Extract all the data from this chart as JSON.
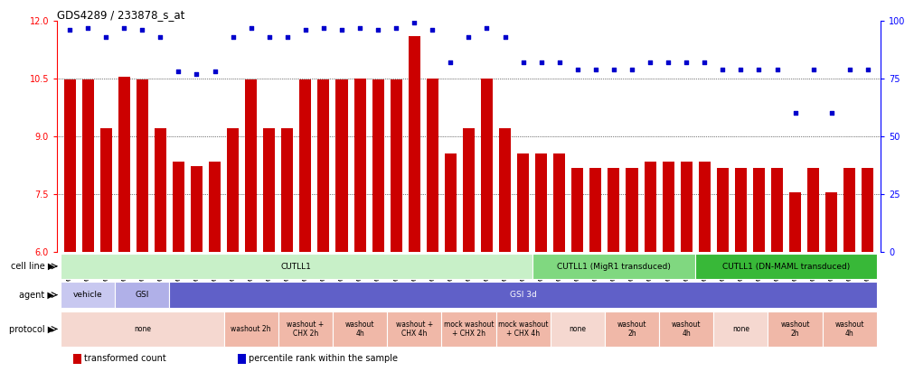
{
  "title": "GDS4289 / 233878_s_at",
  "gsm_labels": [
    "GSM731500",
    "GSM731501",
    "GSM731502",
    "GSM731503",
    "GSM731504",
    "GSM731505",
    "GSM731518",
    "GSM731519",
    "GSM731520",
    "GSM731506",
    "GSM731507",
    "GSM731508",
    "GSM731509",
    "GSM731510",
    "GSM731511",
    "GSM731512",
    "GSM731513",
    "GSM731514",
    "GSM731515",
    "GSM731516",
    "GSM731517",
    "GSM731521",
    "GSM731522",
    "GSM731523",
    "GSM731524",
    "GSM731525",
    "GSM731526",
    "GSM731527",
    "GSM731528",
    "GSM731529",
    "GSM731531",
    "GSM731532",
    "GSM731533",
    "GSM731534",
    "GSM731535",
    "GSM731536",
    "GSM731537",
    "GSM731538",
    "GSM731539",
    "GSM731540",
    "GSM731541",
    "GSM731542",
    "GSM731543",
    "GSM731544",
    "GSM731545"
  ],
  "bar_values": [
    10.47,
    10.48,
    9.22,
    10.55,
    10.48,
    9.22,
    8.35,
    8.22,
    8.35,
    9.22,
    10.47,
    9.22,
    9.22,
    10.47,
    10.47,
    10.47,
    10.5,
    10.48,
    10.48,
    11.6,
    10.5,
    8.55,
    9.22,
    10.5,
    9.22,
    8.55,
    8.55,
    8.55,
    8.18,
    8.18,
    8.18,
    8.18,
    8.35,
    8.35,
    8.35,
    8.35,
    8.18,
    8.18,
    8.18,
    8.18,
    7.55,
    8.18,
    7.55,
    8.18,
    8.18
  ],
  "dot_values": [
    96,
    97,
    93,
    97,
    96,
    93,
    78,
    77,
    78,
    93,
    97,
    93,
    93,
    96,
    97,
    96,
    97,
    96,
    97,
    99,
    96,
    82,
    93,
    97,
    93,
    82,
    82,
    82,
    79,
    79,
    79,
    79,
    82,
    82,
    82,
    82,
    79,
    79,
    79,
    79,
    60,
    79,
    60,
    79,
    79
  ],
  "bar_color": "#cc0000",
  "dot_color": "#0000cc",
  "ylim_left": [
    6,
    12
  ],
  "ylim_right": [
    0,
    100
  ],
  "yticks_left": [
    6,
    7.5,
    9,
    10.5,
    12
  ],
  "yticks_right": [
    0,
    25,
    50,
    75,
    100
  ],
  "bg_color": "#ffffff",
  "cell_line_row": {
    "label": "cell line",
    "segments": [
      {
        "text": "CUTLL1",
        "start": 0,
        "end": 26,
        "color": "#c8f0c8"
      },
      {
        "text": "CUTLL1 (MigR1 transduced)",
        "start": 26,
        "end": 35,
        "color": "#80d880"
      },
      {
        "text": "CUTLL1 (DN-MAML transduced)",
        "start": 35,
        "end": 45,
        "color": "#38b838"
      }
    ]
  },
  "agent_row": {
    "label": "agent",
    "segments": [
      {
        "text": "vehicle",
        "start": 0,
        "end": 3,
        "color": "#c8c8f0",
        "text_color": "#000000"
      },
      {
        "text": "GSI",
        "start": 3,
        "end": 6,
        "color": "#b0b0e8",
        "text_color": "#000000"
      },
      {
        "text": "GSI 3d",
        "start": 6,
        "end": 45,
        "color": "#6060c8",
        "text_color": "#ffffff"
      }
    ]
  },
  "protocol_row": {
    "label": "protocol",
    "segments": [
      {
        "text": "none",
        "start": 0,
        "end": 9,
        "color": "#f5d8d0"
      },
      {
        "text": "washout 2h",
        "start": 9,
        "end": 12,
        "color": "#f0b8a8"
      },
      {
        "text": "washout +\nCHX 2h",
        "start": 12,
        "end": 15,
        "color": "#f0b8a8"
      },
      {
        "text": "washout\n4h",
        "start": 15,
        "end": 18,
        "color": "#f0b8a8"
      },
      {
        "text": "washout +\nCHX 4h",
        "start": 18,
        "end": 21,
        "color": "#f0b8a8"
      },
      {
        "text": "mock washout\n+ CHX 2h",
        "start": 21,
        "end": 24,
        "color": "#f0b8a8"
      },
      {
        "text": "mock washout\n+ CHX 4h",
        "start": 24,
        "end": 27,
        "color": "#f0b8a8"
      },
      {
        "text": "none",
        "start": 27,
        "end": 30,
        "color": "#f5d8d0"
      },
      {
        "text": "washout\n2h",
        "start": 30,
        "end": 33,
        "color": "#f0b8a8"
      },
      {
        "text": "washout\n4h",
        "start": 33,
        "end": 36,
        "color": "#f0b8a8"
      },
      {
        "text": "none",
        "start": 36,
        "end": 39,
        "color": "#f5d8d0"
      },
      {
        "text": "washout\n2h",
        "start": 39,
        "end": 42,
        "color": "#f0b8a8"
      },
      {
        "text": "washout\n4h",
        "start": 42,
        "end": 45,
        "color": "#f0b8a8"
      }
    ]
  },
  "legend": [
    {
      "color": "#cc0000",
      "label": "transformed count"
    },
    {
      "color": "#0000cc",
      "label": "percentile rank within the sample"
    }
  ]
}
